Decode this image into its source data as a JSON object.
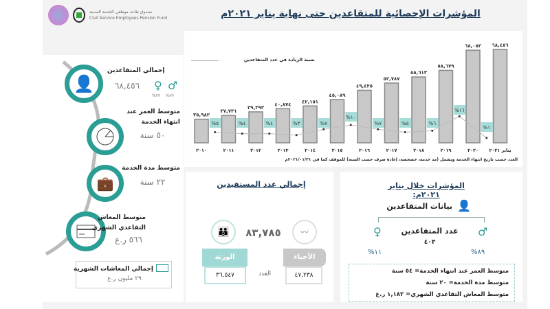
{
  "header": {
    "title": "المؤشرات الإحصائية للمتقاعدين حتى نهاية يناير ٢٠٢١م",
    "logo_text_ar": "صندوق تقاعد موظفي الخدمة المدنية",
    "logo_text_en": "Civil Service Employees Pension Fund"
  },
  "left_panel": {
    "total_retirees_label": "إجمالي المتقاعدين",
    "total_retirees_value": "٦٨,٤٥٦",
    "male_pct": "%٧٧",
    "female_pct": "%٢٣",
    "avg_age_label_1": "متوسط العمر عند",
    "avg_age_label_2": "انتهاء الخدمة",
    "avg_age_value": "٥٠ سنة",
    "avg_service_label": "متوسط مدة الخدمة",
    "avg_service_value": "٢٢ سنة",
    "avg_pension_label_1": "متوسط المعاش",
    "avg_pension_label_2": "التقاعدي الشهري",
    "avg_pension_value": "٥٦٦ ر.ع",
    "total_pensions_label": "إجمالي المعاشات الشهرية",
    "total_pensions_value": "٢٩ مليون ر.ع"
  },
  "chart_data": {
    "type": "bar",
    "categories": [
      "٢٠١٠",
      "٢٠١١",
      "٢٠١٢",
      "٢٠١٣",
      "٢٠١٤",
      "٢٠١٥",
      "٢٠١٦",
      "٢٠١٧",
      "٢٠١٨",
      "٢٠١٩",
      "٢٠٢٠",
      "يناير ٢٠٢١"
    ],
    "values": [
      35982,
      37731,
      39393,
      40874,
      42151,
      45089,
      49425,
      52787,
      55613,
      58679,
      68053,
      68456
    ],
    "value_labels": [
      "٣٥,٩٨٢",
      "٣٧,٧٣١",
      "٣٩,٣٩٣",
      "٤٠,٨٧٤",
      "٤٢,١٥١",
      "٤٥,٠٨٩",
      "٤٩,٤٢٥",
      "٥٢,٧٨٧",
      "٥٥,٦١٣",
      "٥٨,٦٧٩",
      "٦٨,٠٥٣",
      "٦٨,٤٥٦"
    ],
    "line_series": {
      "name": "نسبة الزيادة في عدد المتقاعدين",
      "values": [
        5,
        4,
        4,
        3,
        7,
        10,
        7,
        5,
        6,
        16,
        1
      ],
      "labels": [
        "%٥",
        "%٤",
        "%٤",
        "%٣",
        "%٧",
        "%١٠",
        "%٧",
        "%٥",
        "%٦",
        "%١٦",
        "%١"
      ]
    },
    "ylim": [
      25000,
      70000
    ],
    "footnote": "العدد حسب تاريخ انتهاء الخدمة ويشمل (مد خدمة، خصخصة، إعادة صرف حسب السنة) للموقف كما في ٢٠٢١/٠١/٣١م",
    "colors": {
      "bar": "#c8c8c8",
      "label_bg": "#a8dcd8",
      "line": "#bbbbbb"
    }
  },
  "beneficiaries": {
    "title": "إجمالي عدد المستفيدين",
    "total": "٨٣,٧٨٥",
    "heirs_label": "الورثة",
    "heirs_value": "٣٦,٥٤٧",
    "alive_label": "الأحياء",
    "alive_value": "٤٧,٢٣٨",
    "count_label": "العدد"
  },
  "indicators": {
    "title": "المؤشرات خلال يناير ٢٠٢١م:",
    "retirees_data_label": "بيانات المتقاعدين",
    "count_label": "عدد المتقاعدين",
    "count_value": "٤٠٣",
    "male_pct": "%٨٩",
    "female_pct": "%١١",
    "lines": [
      "متوسط العمر عند انتهاء الخدمة= ٥٤ سنة",
      "متوسط مدة الخدمة= ٢٠ سنة",
      "متوسط المعاش التقاعدي الشهري= ١,١٨٢ ر.ع"
    ]
  },
  "colors": {
    "accent": "#2a9d94",
    "title": "#1f3b5a"
  }
}
